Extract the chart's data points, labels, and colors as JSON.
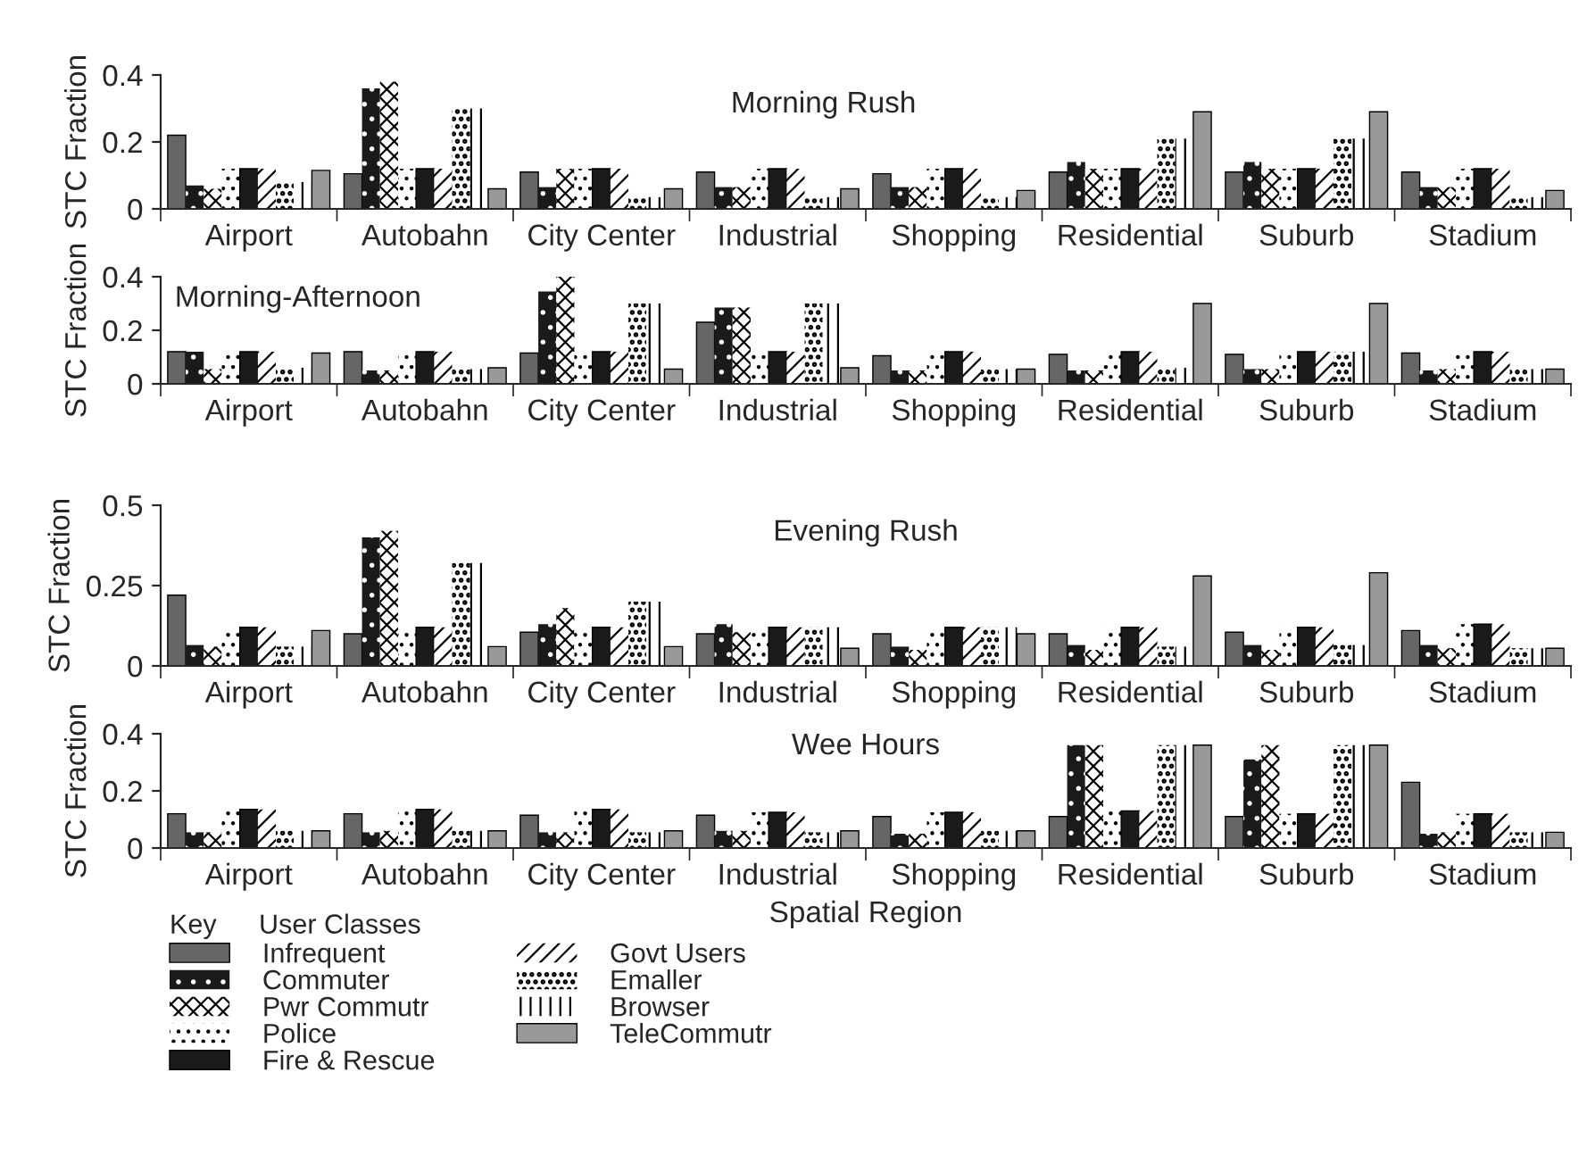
{
  "chart_data": [
    {
      "type": "bar",
      "title": "Morning Rush",
      "ylabel": "STC Fraction",
      "legend_title": "User Classes",
      "annotations": [
        "Key"
      ],
      "legend": "bottom left",
      "categories": [
        "Airport",
        "Autobahn",
        "City Center",
        "Industrial",
        "Shopping",
        "Residential",
        "Suburb",
        "Stadium"
      ],
      "ylim": [
        0,
        0.4
      ],
      "yticks": [
        0,
        0.2,
        0.4
      ],
      "grid": false,
      "series": [
        {
          "name": "Infrequent",
          "color": "#666666",
          "values": [
            0.22,
            0.105,
            0.11,
            0.11,
            0.105,
            0.11,
            0.11,
            0.11
          ]
        },
        {
          "name": "Commuter",
          "color": "#1a1a1a",
          "values": [
            0.07,
            0.36,
            0.065,
            0.065,
            0.065,
            0.14,
            0.14,
            0.065
          ]
        },
        {
          "name": "Pwr Commutr",
          "color": "#ffffff",
          "values": [
            0.06,
            0.38,
            0.12,
            0.065,
            0.065,
            0.12,
            0.12,
            0.065
          ]
        },
        {
          "name": "Police",
          "color": "#ffffff",
          "values": [
            0.12,
            0.12,
            0.12,
            0.12,
            0.12,
            0.12,
            0.12,
            0.12
          ]
        },
        {
          "name": "Fire & Rescue",
          "color": "#1a1a1a",
          "values": [
            0.12,
            0.12,
            0.12,
            0.12,
            0.12,
            0.12,
            0.12,
            0.12
          ]
        },
        {
          "name": "Govt Users",
          "color": "#ffffff",
          "values": [
            0.12,
            0.12,
            0.12,
            0.12,
            0.12,
            0.12,
            0.12,
            0.12
          ]
        },
        {
          "name": "Emaller",
          "color": "#ffffff",
          "values": [
            0.08,
            0.3,
            0.035,
            0.035,
            0.035,
            0.21,
            0.21,
            0.035
          ]
        },
        {
          "name": "Browser",
          "color": "#ffffff",
          "values": [
            0.08,
            0.3,
            0.035,
            0.035,
            0.035,
            0.21,
            0.21,
            0.035
          ]
        },
        {
          "name": "TeleCommutr",
          "color": "#999999",
          "values": [
            0.115,
            0.06,
            0.06,
            0.06,
            0.055,
            0.29,
            0.29,
            0.055
          ]
        }
      ]
    },
    {
      "type": "bar",
      "title": "Morning-Afternoon",
      "ylabel": "STC Fraction",
      "categories": [
        "Airport",
        "Autobahn",
        "City Center",
        "Industrial",
        "Shopping",
        "Residential",
        "Suburb",
        "Stadium"
      ],
      "ylim": [
        0,
        0.4
      ],
      "yticks": [
        0,
        0.2,
        0.4
      ],
      "grid": false,
      "series": [
        {
          "color": "#666666",
          "values": [
            0.12,
            0.12,
            0.115,
            0.23,
            0.105,
            0.11,
            0.11,
            0.115
          ]
        },
        {
          "color": "#1a1a1a",
          "values": [
            0.12,
            0.05,
            0.345,
            0.285,
            0.05,
            0.05,
            0.055,
            0.05
          ]
        },
        {
          "color": "#ffffff",
          "values": [
            0.055,
            0.05,
            0.4,
            0.285,
            0.05,
            0.05,
            0.055,
            0.055
          ]
        },
        {
          "color": "#ffffff",
          "values": [
            0.12,
            0.12,
            0.12,
            0.12,
            0.12,
            0.12,
            0.12,
            0.12
          ]
        },
        {
          "color": "#1a1a1a",
          "values": [
            0.12,
            0.12,
            0.12,
            0.12,
            0.12,
            0.12,
            0.12,
            0.12
          ]
        },
        {
          "color": "#ffffff",
          "values": [
            0.12,
            0.12,
            0.12,
            0.12,
            0.12,
            0.12,
            0.12,
            0.12
          ]
        },
        {
          "color": "#ffffff",
          "values": [
            0.06,
            0.055,
            0.3,
            0.3,
            0.055,
            0.06,
            0.12,
            0.055
          ]
        },
        {
          "color": "#ffffff",
          "values": [
            0.06,
            0.055,
            0.3,
            0.3,
            0.055,
            0.06,
            0.12,
            0.055
          ]
        },
        {
          "color": "#999999",
          "values": [
            0.115,
            0.06,
            0.055,
            0.06,
            0.055,
            0.3,
            0.3,
            0.055
          ]
        }
      ]
    },
    {
      "type": "bar",
      "title": "Evening Rush",
      "ylabel": "STC Fraction",
      "categories": [
        "Airport",
        "Autobahn",
        "City Center",
        "Industrial",
        "Shopping",
        "Residential",
        "Suburb",
        "Stadium"
      ],
      "ylim": [
        0,
        0.5
      ],
      "yticks": [
        0,
        0.25,
        0.5
      ],
      "grid": false,
      "series": [
        {
          "color": "#666666",
          "values": [
            0.22,
            0.1,
            0.105,
            0.1,
            0.1,
            0.1,
            0.105,
            0.11
          ]
        },
        {
          "color": "#1a1a1a",
          "values": [
            0.065,
            0.4,
            0.13,
            0.13,
            0.06,
            0.065,
            0.065,
            0.065
          ]
        },
        {
          "color": "#ffffff",
          "values": [
            0.06,
            0.42,
            0.18,
            0.105,
            0.05,
            0.05,
            0.05,
            0.055
          ]
        },
        {
          "color": "#ffffff",
          "values": [
            0.12,
            0.12,
            0.12,
            0.12,
            0.12,
            0.12,
            0.12,
            0.13
          ]
        },
        {
          "color": "#1a1a1a",
          "values": [
            0.12,
            0.12,
            0.12,
            0.12,
            0.12,
            0.12,
            0.12,
            0.13
          ]
        },
        {
          "color": "#ffffff",
          "values": [
            0.12,
            0.12,
            0.12,
            0.12,
            0.12,
            0.12,
            0.12,
            0.13
          ]
        },
        {
          "color": "#ffffff",
          "values": [
            0.06,
            0.32,
            0.2,
            0.12,
            0.12,
            0.06,
            0.065,
            0.055
          ]
        },
        {
          "color": "#ffffff",
          "values": [
            0.06,
            0.32,
            0.2,
            0.12,
            0.12,
            0.06,
            0.065,
            0.055
          ]
        },
        {
          "color": "#999999",
          "values": [
            0.11,
            0.06,
            0.06,
            0.055,
            0.1,
            0.28,
            0.29,
            0.055
          ]
        }
      ]
    },
    {
      "type": "bar",
      "title": "Wee Hours",
      "ylabel": "STC Fraction",
      "xlabel": "Spatial Region",
      "categories": [
        "Airport",
        "Autobahn",
        "City Center",
        "Industrial",
        "Shopping",
        "Residential",
        "Suburb",
        "Stadium"
      ],
      "ylim": [
        0,
        0.4
      ],
      "yticks": [
        0,
        0.2,
        0.4
      ],
      "grid": false,
      "series": [
        {
          "color": "#666666",
          "values": [
            0.12,
            0.12,
            0.115,
            0.115,
            0.11,
            0.11,
            0.11,
            0.23
          ]
        },
        {
          "color": "#1a1a1a",
          "values": [
            0.055,
            0.055,
            0.055,
            0.06,
            0.05,
            0.36,
            0.31,
            0.05
          ]
        },
        {
          "color": "#ffffff",
          "values": [
            0.055,
            0.06,
            0.055,
            0.06,
            0.05,
            0.36,
            0.36,
            0.055
          ]
        },
        {
          "color": "#ffffff",
          "values": [
            0.135,
            0.135,
            0.135,
            0.125,
            0.125,
            0.13,
            0.12,
            0.12
          ]
        },
        {
          "color": "#1a1a1a",
          "values": [
            0.135,
            0.135,
            0.135,
            0.125,
            0.125,
            0.13,
            0.12,
            0.12
          ]
        },
        {
          "color": "#ffffff",
          "values": [
            0.135,
            0.135,
            0.135,
            0.125,
            0.125,
            0.13,
            0.12,
            0.12
          ]
        },
        {
          "color": "#ffffff",
          "values": [
            0.06,
            0.06,
            0.055,
            0.055,
            0.06,
            0.36,
            0.36,
            0.055
          ]
        },
        {
          "color": "#ffffff",
          "values": [
            0.06,
            0.06,
            0.055,
            0.055,
            0.06,
            0.36,
            0.36,
            0.055
          ]
        },
        {
          "color": "#999999",
          "values": [
            0.06,
            0.06,
            0.06,
            0.06,
            0.06,
            0.36,
            0.36,
            0.055
          ]
        }
      ]
    }
  ]
}
